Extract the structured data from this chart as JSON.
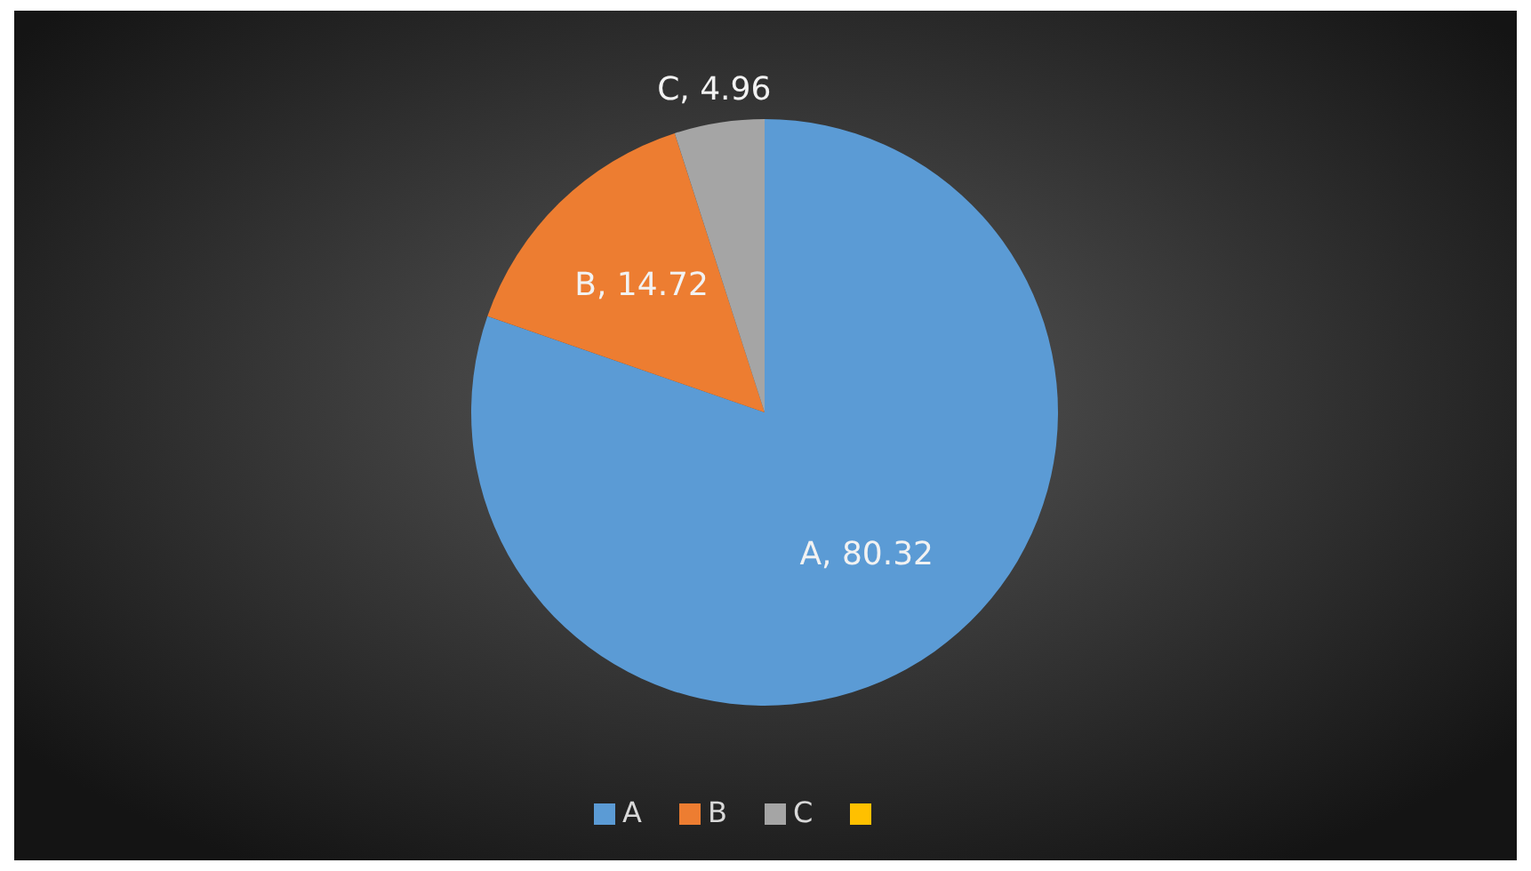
{
  "chart_data": {
    "type": "pie",
    "categories": [
      "A",
      "B",
      "C",
      null
    ],
    "values": [
      80.32,
      14.72,
      4.96,
      0
    ],
    "colors": [
      "#5b9bd5",
      "#ed7d31",
      "#a5a5a5",
      "#ffc000"
    ],
    "value_labels": [
      "A, 80.32",
      "B, 14.72",
      "C, 4.96",
      null
    ],
    "legend": "bottom"
  }
}
